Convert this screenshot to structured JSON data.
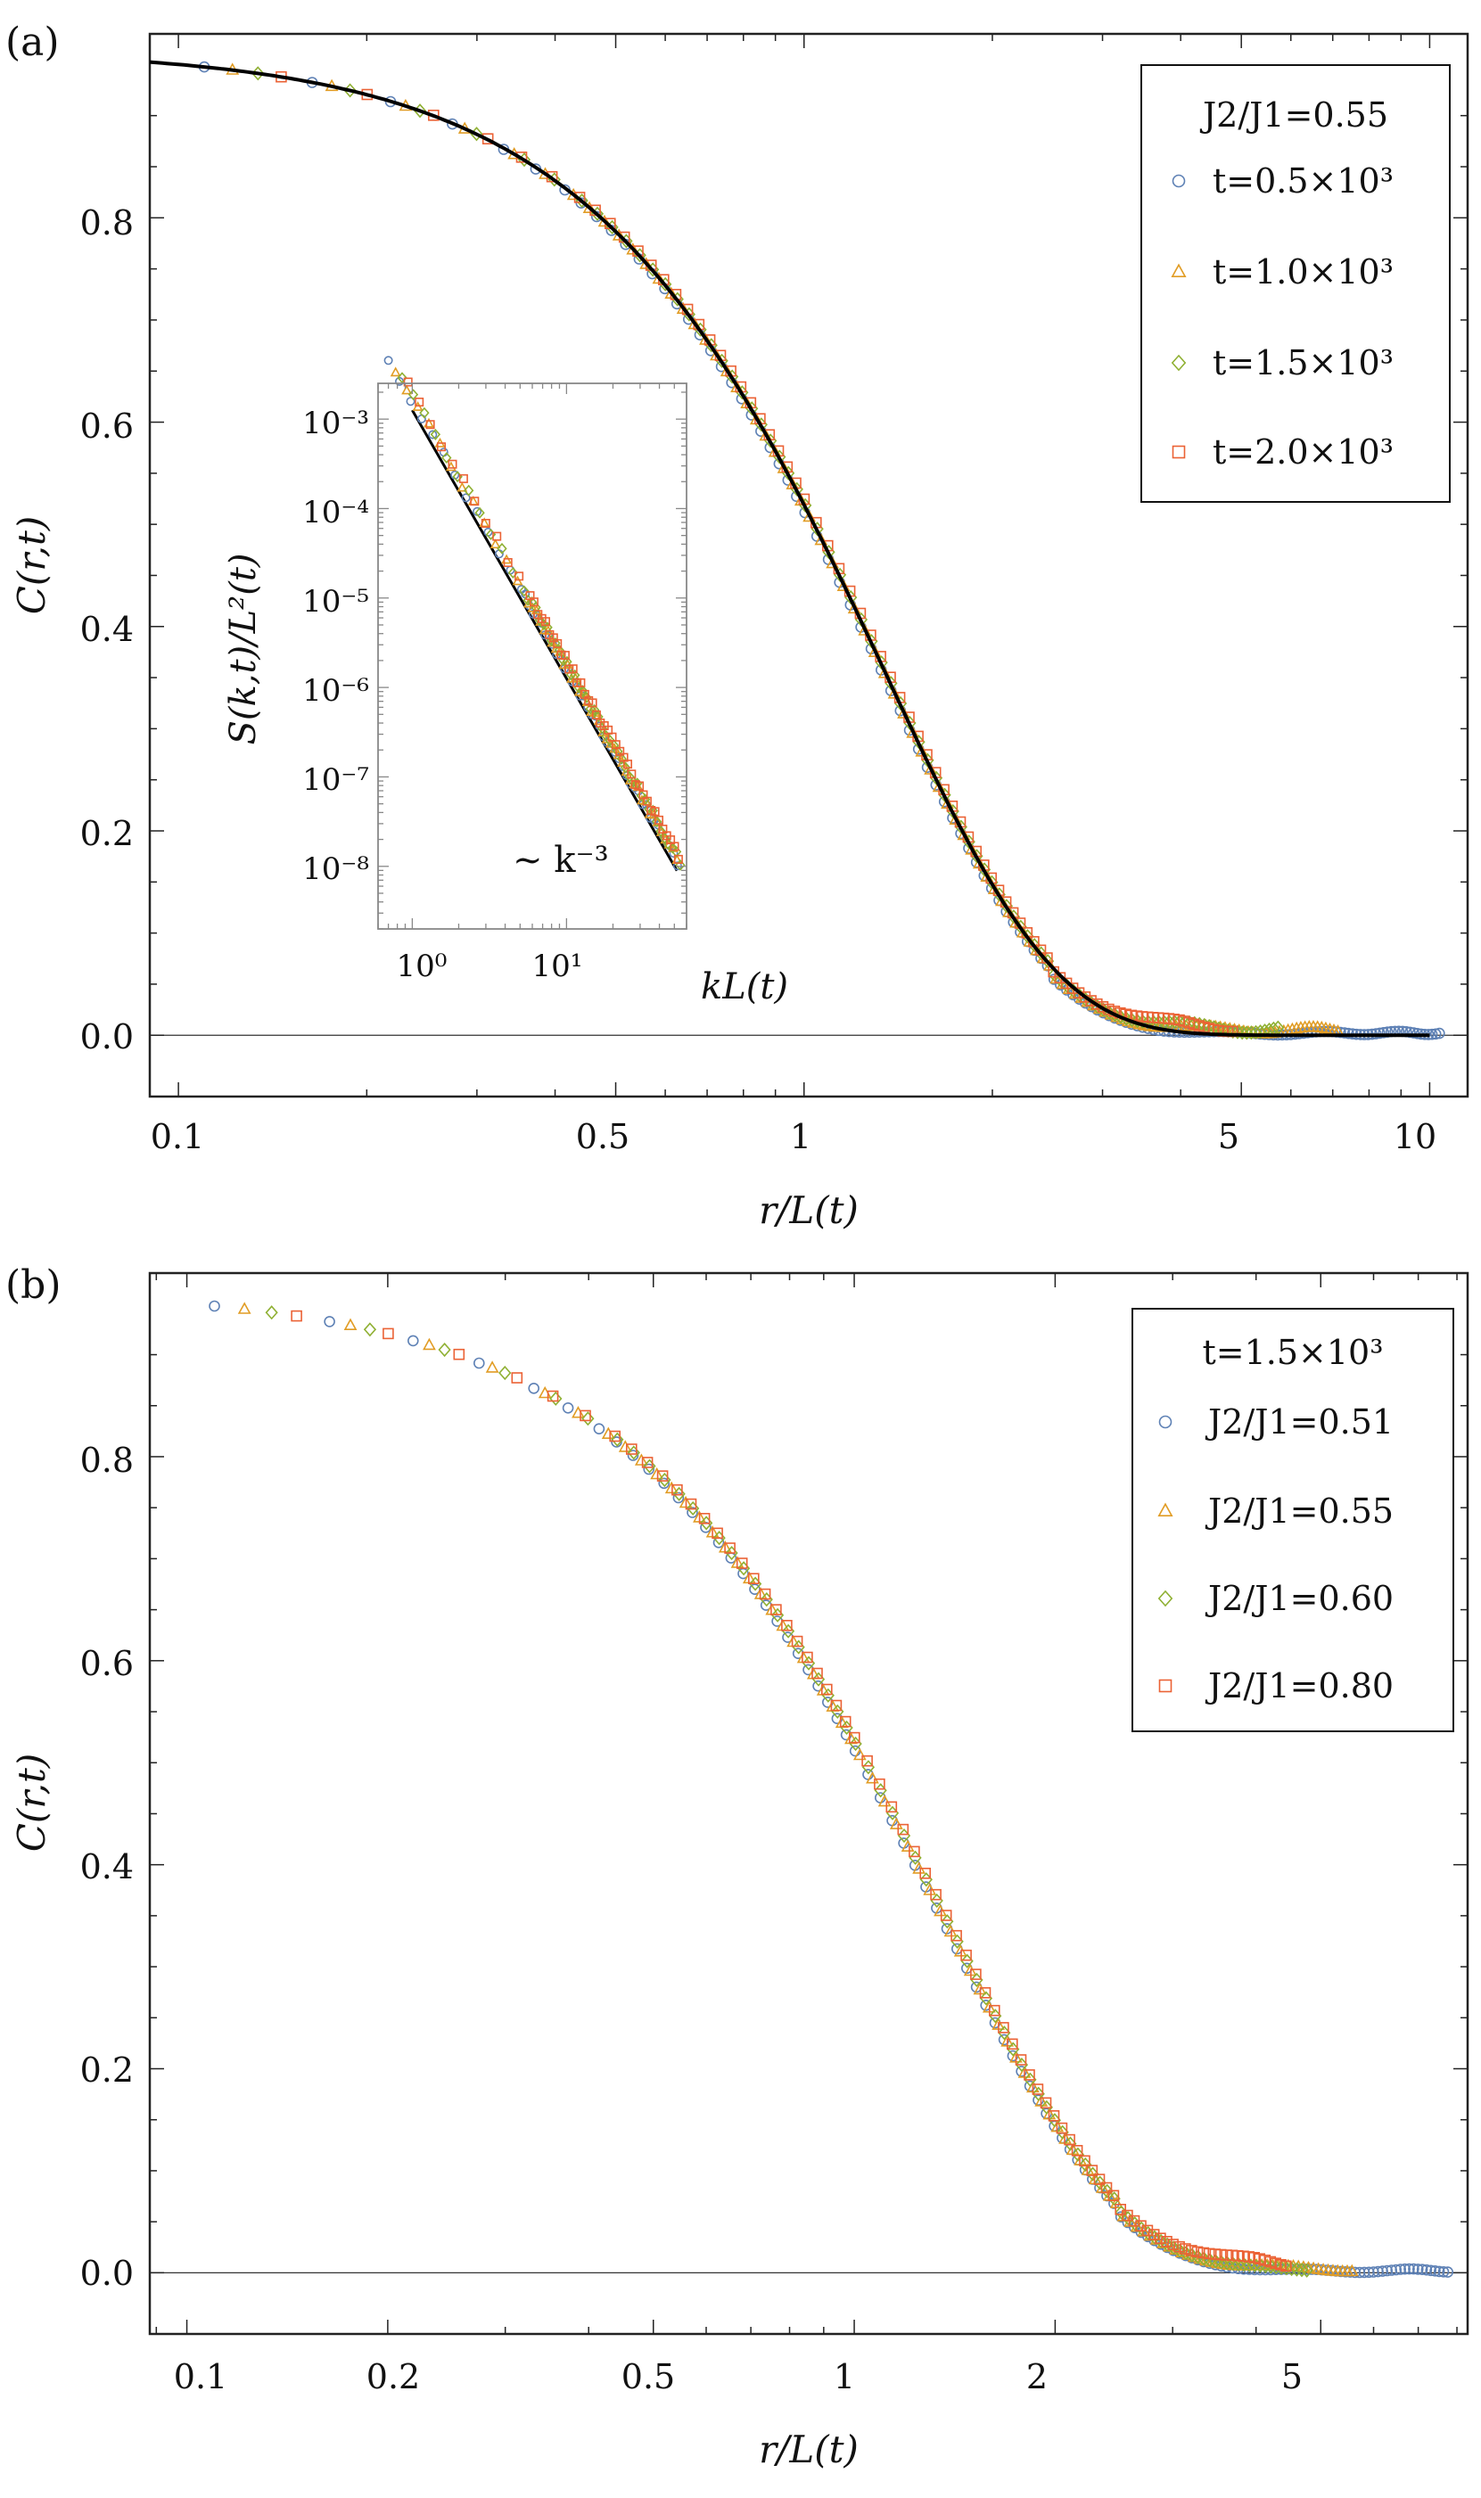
{
  "chart_data": [
    {
      "type": "scatter",
      "panel_label": "(a)",
      "xlabel": "r/L(t)",
      "ylabel": "C(r,t)",
      "x_scale": "log",
      "xlim": [
        0.09,
        11.5
      ],
      "ylim": [
        -0.06,
        0.98
      ],
      "x_ticks": [
        0.1,
        0.5,
        1,
        5,
        10
      ],
      "x_tick_labels": [
        "0.1",
        "0.5",
        "1",
        "5",
        "10"
      ],
      "y_ticks": [
        0.0,
        0.2,
        0.4,
        0.6,
        0.8
      ],
      "y_tick_labels": [
        "0.0",
        "0.2",
        "0.4",
        "0.6",
        "0.8"
      ],
      "zero_line": true,
      "legend": {
        "placement": "top-right",
        "title": "J2/J1=0.55",
        "entries": [
          "t=0.5×10³",
          "t=1.0×10³",
          "t=1.5×10³",
          "t=2.0×10³"
        ]
      },
      "series": [
        {
          "name": "t=0.5×10³",
          "marker": "circle",
          "color": "#5e81b5",
          "x_max": 10.5,
          "tail_amp": 0.004
        },
        {
          "name": "t=1.0×10³",
          "marker": "triangle",
          "color": "#e19c24",
          "x_max": 7.2,
          "tail_amp": 0.008
        },
        {
          "name": "t=1.5×10³",
          "marker": "diamond",
          "color": "#8fb032",
          "x_max": 5.8,
          "tail_amp": 0.01
        },
        {
          "name": "t=2.0×10³",
          "marker": "square",
          "color": "#eb6235",
          "x_max": 4.9,
          "tail_amp": 0.012
        }
      ],
      "fit_curve": {
        "name": "theory",
        "color": "#000000",
        "x_range": [
          0.09,
          10.0
        ]
      },
      "inset": {
        "type": "scatter",
        "xlabel": "kL(t)",
        "ylabel": "S(k,t)/L²(t)",
        "x_scale": "log",
        "y_scale": "log",
        "xlim": [
          0.6,
          60
        ],
        "ylim_exp": [
          -8.7,
          -2.6
        ],
        "x_ticks": [
          1,
          10
        ],
        "x_tick_labels": [
          "10⁰",
          "10¹"
        ],
        "y_ticks": [
          -8,
          -7,
          -6,
          -5,
          -4,
          -3
        ],
        "y_tick_labels": [
          "10⁻⁸",
          "10⁻⁷",
          "10⁻⁶",
          "10⁻⁵",
          "10⁻⁴",
          "10⁻³"
        ],
        "annotation": "~ k⁻³",
        "power_law": {
          "exponent": -3,
          "x_range": [
            1.0,
            52.0
          ],
          "y_at_1": -2.9
        }
      }
    },
    {
      "type": "scatter",
      "panel_label": "(b)",
      "xlabel": "r/L(t)",
      "ylabel": "C(r,t)",
      "x_scale": "log",
      "xlim": [
        0.088,
        8.3
      ],
      "ylim": [
        -0.06,
        0.98
      ],
      "x_ticks": [
        0.1,
        0.2,
        0.5,
        1,
        2,
        5
      ],
      "x_tick_labels": [
        "0.1",
        "0.2",
        "0.5",
        "1",
        "2",
        "5"
      ],
      "y_ticks": [
        0.0,
        0.2,
        0.4,
        0.6,
        0.8
      ],
      "y_tick_labels": [
        "0.0",
        "0.2",
        "0.4",
        "0.6",
        "0.8"
      ],
      "zero_line": true,
      "legend": {
        "placement": "top-right",
        "title": "t=1.5×10³",
        "entries": [
          "J2/J1=0.51",
          "J2/J1=0.55",
          "J2/J1=0.60",
          "J2/J1=0.80"
        ]
      },
      "series": [
        {
          "name": "J2/J1=0.51",
          "marker": "circle",
          "color": "#5e81b5",
          "x_max": 7.8,
          "tail_amp": 0.004
        },
        {
          "name": "J2/J1=0.55",
          "marker": "triangle",
          "color": "#e19c24",
          "x_max": 5.6,
          "tail_amp": 0.006
        },
        {
          "name": "J2/J1=0.60",
          "marker": "diamond",
          "color": "#8fb032",
          "x_max": 4.8,
          "tail_amp": 0.004
        },
        {
          "name": "J2/J1=0.80",
          "marker": "square",
          "color": "#eb6235",
          "x_max": 4.5,
          "tail_amp": 0.012
        }
      ]
    }
  ]
}
